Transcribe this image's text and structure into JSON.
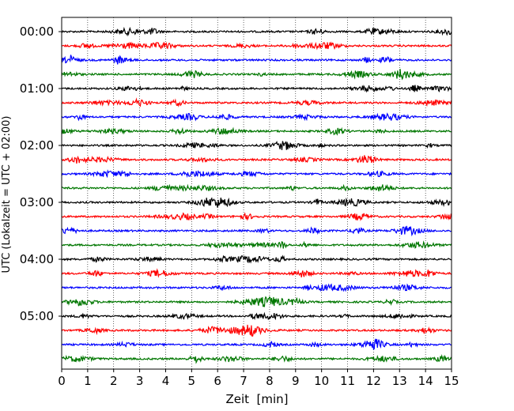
{
  "chart_data": {
    "type": "line",
    "title": "",
    "xlabel": "Zeit  [min]",
    "ylabel": "UTC (Lokalzeit = UTC + 02:00)",
    "xlim": [
      0,
      15
    ],
    "xticks": [
      0,
      1,
      2,
      3,
      4,
      5,
      6,
      7,
      8,
      9,
      10,
      11,
      12,
      13,
      14,
      15
    ],
    "x_tick_labels": [
      "0",
      "1",
      "2",
      "3",
      "4",
      "5",
      "6",
      "7",
      "8",
      "9",
      "10",
      "11",
      "12",
      "13",
      "14",
      "15"
    ],
    "y_tick_labels": [
      "00:00",
      "01:00",
      "02:00",
      "03:00",
      "04:00",
      "05:00"
    ],
    "traces_per_hour": 4,
    "minutes_per_trace": 15,
    "grid": "vertical dotted lines at each minute",
    "series": [
      {
        "start": "00:00",
        "color": "#000000"
      },
      {
        "start": "00:15",
        "color": "#ff0000"
      },
      {
        "start": "00:30",
        "color": "#0000ff"
      },
      {
        "start": "00:45",
        "color": "#007700"
      },
      {
        "start": "01:00",
        "color": "#000000"
      },
      {
        "start": "01:15",
        "color": "#ff0000"
      },
      {
        "start": "01:30",
        "color": "#0000ff"
      },
      {
        "start": "01:45",
        "color": "#007700"
      },
      {
        "start": "02:00",
        "color": "#000000"
      },
      {
        "start": "02:15",
        "color": "#ff0000"
      },
      {
        "start": "02:30",
        "color": "#0000ff"
      },
      {
        "start": "02:45",
        "color": "#007700"
      },
      {
        "start": "03:00",
        "color": "#000000"
      },
      {
        "start": "03:15",
        "color": "#ff0000"
      },
      {
        "start": "03:30",
        "color": "#0000ff"
      },
      {
        "start": "03:45",
        "color": "#007700"
      },
      {
        "start": "04:00",
        "color": "#000000"
      },
      {
        "start": "04:15",
        "color": "#ff0000"
      },
      {
        "start": "04:30",
        "color": "#0000ff"
      },
      {
        "start": "04:45",
        "color": "#007700"
      },
      {
        "start": "05:00",
        "color": "#000000"
      },
      {
        "start": "05:15",
        "color": "#ff0000"
      },
      {
        "start": "05:30",
        "color": "#0000ff"
      },
      {
        "start": "05:45",
        "color": "#007700"
      }
    ]
  }
}
